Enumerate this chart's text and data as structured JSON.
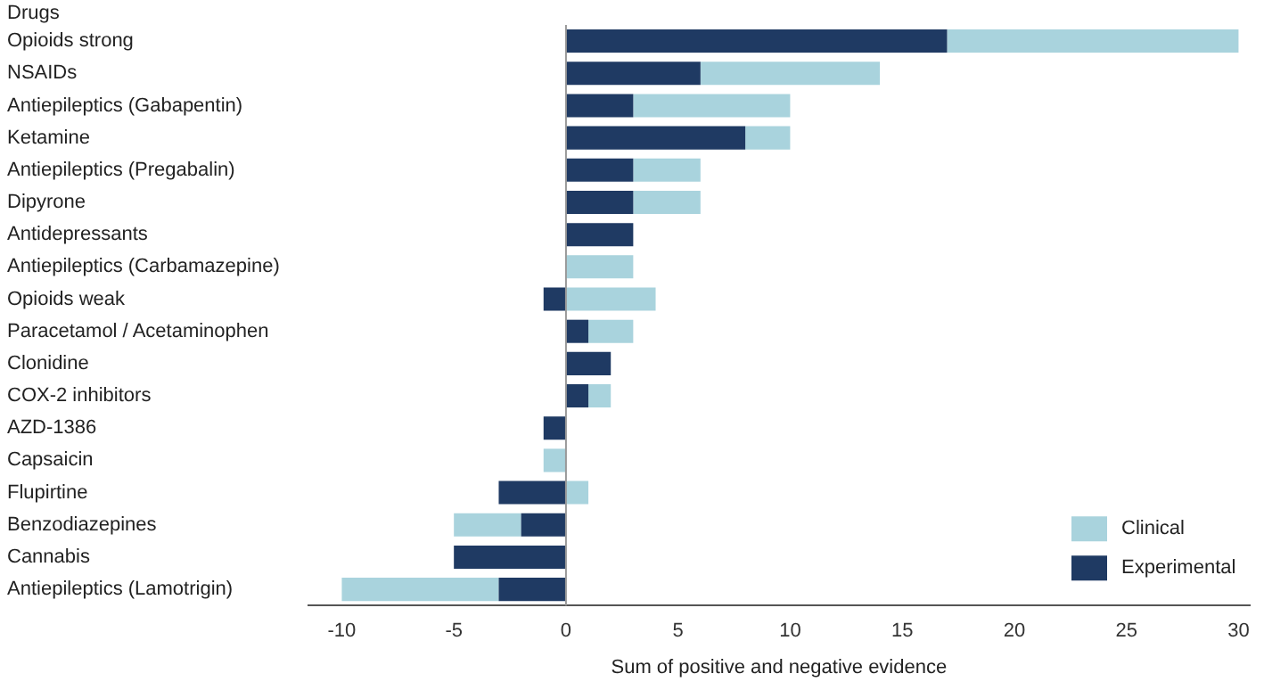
{
  "chart_data": {
    "type": "bar",
    "orientation": "horizontal",
    "stacked": true,
    "ylabel": "Drugs",
    "xlabel": "Sum of positive and negative evidence",
    "categories": [
      "Opioids strong",
      "NSAIDs",
      "Antiepileptics (Gabapentin)",
      "Ketamine",
      "Antiepileptics (Pregabalin)",
      "Dipyrone",
      "Antidepressants",
      "Antiepileptics (Carbamazepine)",
      "Opioids weak",
      "Paracetamol / Acetaminophen",
      "Clonidine",
      "COX-2 inhibitors",
      "AZD-1386",
      "Capsaicin",
      "Flupirtine",
      "Benzodiazepines",
      "Cannabis",
      "Antiepileptics (Lamotrigin)"
    ],
    "series": [
      {
        "name": "Experimental",
        "color": "#1f3a63",
        "values": [
          17,
          6,
          3,
          8,
          3,
          3,
          3,
          0,
          -1,
          1,
          2,
          1,
          -1,
          0,
          -3,
          -2,
          -5,
          -3
        ]
      },
      {
        "name": "Clinical",
        "color": "#a9d3dd",
        "values": [
          13,
          8,
          7,
          2,
          3,
          3,
          0,
          3,
          4,
          2,
          0,
          1,
          0,
          -1,
          1,
          -3,
          0,
          -7
        ]
      }
    ],
    "xlim": [
      -11.5,
      30.5
    ],
    "xticks": [
      -10,
      -5,
      0,
      5,
      10,
      15,
      20,
      25,
      30
    ],
    "ref_lines": [
      {
        "axis": "x",
        "value": 0,
        "color": "#999999"
      }
    ],
    "grid": false,
    "legend": "bottom right"
  }
}
